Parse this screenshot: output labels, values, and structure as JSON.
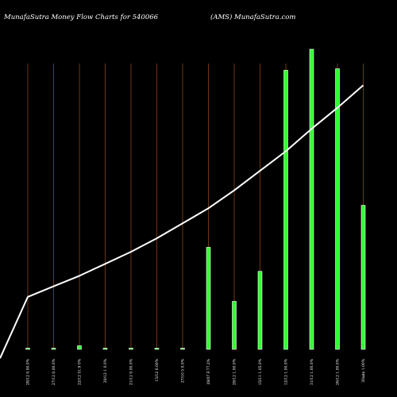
{
  "header": {
    "left_title": "MunafaSutra  Money Flow  Charts for 540066",
    "right_title": "(AMS) MunafaSutra.com"
  },
  "colors": {
    "background": "#000000",
    "text": "#ffffff",
    "bar": "#33ff33",
    "bar_outline": "#ffffff",
    "gridline": "#8b4513",
    "trend_line": "#ffffff"
  },
  "chart_data": {
    "type": "bar",
    "categories": [
      "28/12 0.00.0%",
      "27/12 0.00.0%",
      "22/12 51.9 0%",
      "20/12 1 0.0%",
      "21/12 0.00.0%",
      "15/12 0.00%",
      "27/10 5 0.0%",
      "28/07 F.77.2%",
      "29/12 1.00.0%",
      "15/11 1.05.0%",
      "12/12 1.00.0%",
      "31/12 1.00.0%",
      "26/12 1.00.0%",
      "30aim 1.00%"
    ],
    "series": [
      {
        "type": "bar",
        "values": [
          0.3,
          0.3,
          1.2,
          0.3,
          0.3,
          0.4,
          0.3,
          34,
          16,
          26,
          93,
          100,
          93.5,
          48
        ]
      },
      {
        "type": "line",
        "values": [
          17.5,
          21,
          24.5,
          28.5,
          32.5,
          37,
          42,
          47,
          53,
          59.5,
          66,
          73.5,
          80.5,
          88
        ]
      }
    ],
    "ylim": [
      0,
      100
    ],
    "grid": true,
    "legend": "none"
  }
}
